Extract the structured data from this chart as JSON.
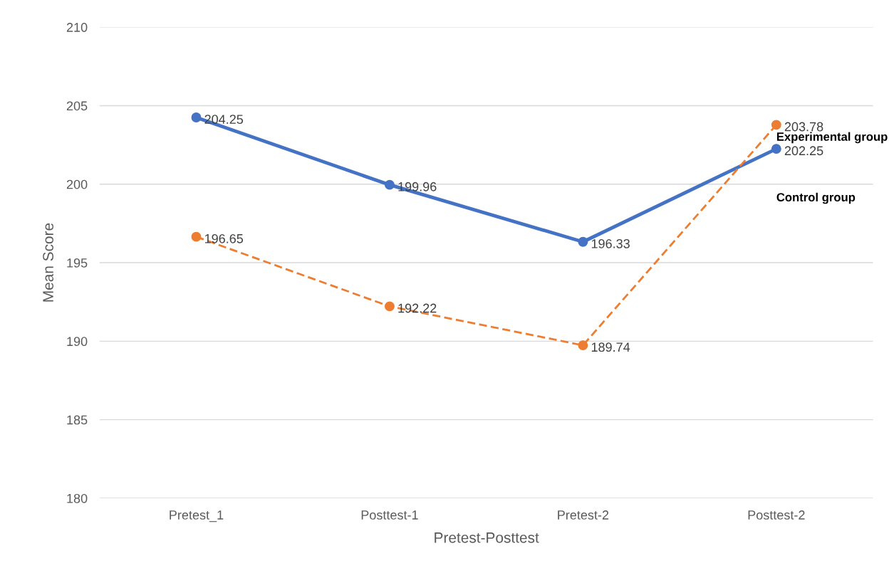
{
  "chart_data": {
    "type": "line",
    "xlabel": "Pretest-Posttest",
    "ylabel": "Mean Score",
    "categories": [
      "Pretest_1",
      "Posttest-1",
      "Pretest-2",
      "Posttest-2"
    ],
    "series": [
      {
        "name": "Control group",
        "color": "#4472c4",
        "values": [
          204.25,
          199.96,
          196.33,
          202.25
        ],
        "line_style": "solid"
      },
      {
        "name": "Experimental group",
        "color": "#ed7d31",
        "values": [
          196.65,
          192.22,
          189.74,
          203.78
        ],
        "line_style": "dashed"
      }
    ],
    "ylim": [
      180,
      210
    ],
    "yticks": [
      180,
      185,
      190,
      195,
      200,
      205,
      210
    ],
    "grid": "y",
    "legend": false,
    "marker": "circle",
    "data_labels": true
  }
}
